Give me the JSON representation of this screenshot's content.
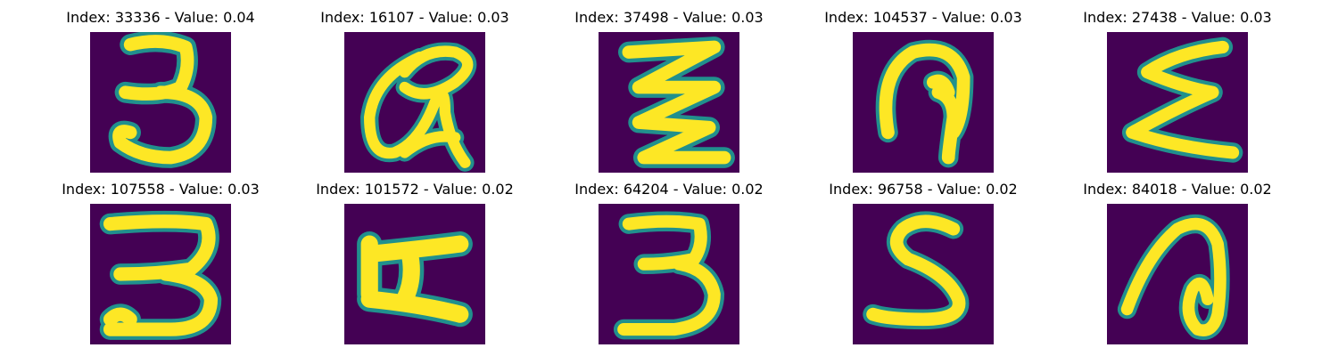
{
  "colors": {
    "background": "#440154",
    "edge": "#21908d",
    "mid": "#5ec962",
    "ink": "#fde725"
  },
  "samples": [
    {
      "title": "Index: 33336 - Value: 0.04",
      "glyph": "3"
    },
    {
      "title": "Index: 16107 - Value: 0.03",
      "glyph": "a-loop"
    },
    {
      "title": "Index: 37498 - Value: 0.03",
      "glyph": "zigzag"
    },
    {
      "title": "Index: 104537 - Value: 0.03",
      "glyph": "p-hook"
    },
    {
      "title": "Index: 27438 - Value: 0.03",
      "glyph": "sigma"
    },
    {
      "title": "Index: 107558 - Value: 0.03",
      "glyph": "3-bold"
    },
    {
      "title": "Index: 101572 - Value: 0.02",
      "glyph": "z-block"
    },
    {
      "title": "Index: 64204 - Value: 0.02",
      "glyph": "3-flat"
    },
    {
      "title": "Index: 96758 - Value: 0.02",
      "glyph": "5"
    },
    {
      "title": "Index: 84018 - Value: 0.02",
      "glyph": "d-loop"
    }
  ]
}
